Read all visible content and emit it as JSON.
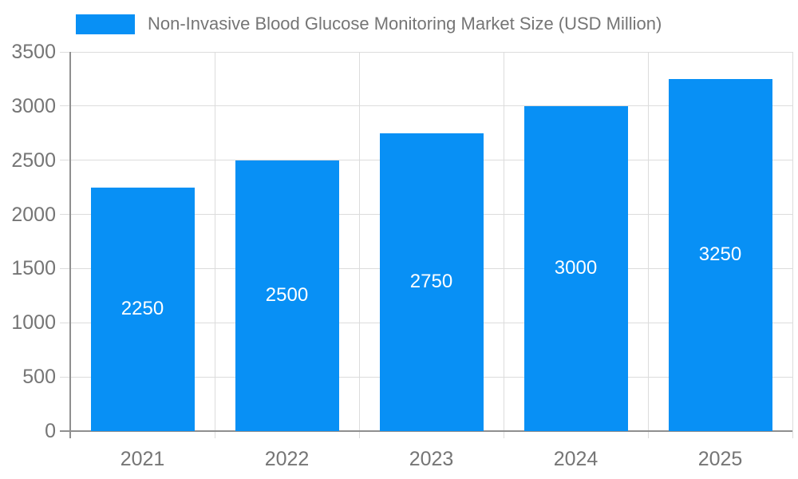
{
  "colors": {
    "bar": "#0890F5",
    "grid": "#dcdcdc",
    "axis": "#8f8f8f",
    "tick_text": "#757575",
    "value_text": "#ffffff"
  },
  "chart_data": {
    "type": "bar",
    "title": "Non-Invasive Blood Glucose Monitoring Market Size (USD Million)",
    "categories": [
      "2021",
      "2022",
      "2023",
      "2024",
      "2025"
    ],
    "values": [
      2250,
      2500,
      2750,
      3000,
      3250
    ],
    "xlabel": "",
    "ylabel": "",
    "ylim": [
      0,
      3500
    ],
    "ytick_step": 500,
    "yticks": [
      0,
      500,
      1000,
      1500,
      2000,
      2500,
      3000,
      3500
    ],
    "grid": true,
    "legend_position": "top-left",
    "bar_label_position": "inside-center"
  }
}
